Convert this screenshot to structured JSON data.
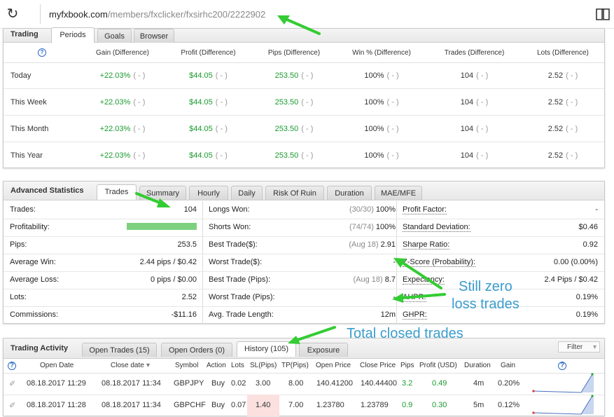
{
  "browser": {
    "url_domain": "myfxbook.com",
    "url_path": "/members/fxclicker/fxsirhc200/2222902"
  },
  "trading": {
    "title": "Trading",
    "tabs": [
      "Periods",
      "Goals",
      "Browser"
    ],
    "columns": [
      "Gain (Difference)",
      "Profit (Difference)",
      "Pips (Difference)",
      "Win % (Difference)",
      "Trades (Difference)",
      "Lots (Difference)"
    ],
    "rows": [
      {
        "period": "Today",
        "gain": "+22.03%",
        "profit": "$44.05",
        "pips": "253.50",
        "win": "100%",
        "trades": "104",
        "lots": "2.52",
        "diff": "( - )"
      },
      {
        "period": "This Week",
        "gain": "+22.03%",
        "profit": "$44.05",
        "pips": "253.50",
        "win": "100%",
        "trades": "104",
        "lots": "2.52",
        "diff": "( - )"
      },
      {
        "period": "This Month",
        "gain": "+22.03%",
        "profit": "$44.05",
        "pips": "253.50",
        "win": "100%",
        "trades": "104",
        "lots": "2.52",
        "diff": "( - )"
      },
      {
        "period": "This Year",
        "gain": "+22.03%",
        "profit": "$44.05",
        "pips": "253.50",
        "win": "100%",
        "trades": "104",
        "lots": "2.52",
        "diff": "( - )"
      }
    ]
  },
  "advanced": {
    "title": "Advanced Statistics",
    "tabs": [
      "Trades",
      "Summary",
      "Hourly",
      "Daily",
      "Risk Of Ruin",
      "Duration",
      "MAE/MFE"
    ],
    "col1": [
      {
        "label": "Trades:",
        "value": "104"
      },
      {
        "label": "Profitability:",
        "value": ""
      },
      {
        "label": "Pips:",
        "value": "253.5"
      },
      {
        "label": "Average Win:",
        "value": "2.44 pips / $0.42"
      },
      {
        "label": "Average Loss:",
        "value": "0 pips / $0.00"
      },
      {
        "label": "Lots:",
        "value": "2.52"
      },
      {
        "label": "Commissions:",
        "value": "-$11.16"
      }
    ],
    "profitability_win_fraction": 1.0,
    "col2": [
      {
        "label": "Longs Won:",
        "sub": "(30/30)",
        "value": "100%"
      },
      {
        "label": "Shorts Won:",
        "sub": "(74/74)",
        "value": "100%"
      },
      {
        "label": "Best Trade($):",
        "sub": "(Aug 18)",
        "value": "2.91"
      },
      {
        "label": "Worst Trade($):",
        "sub": "",
        "value": "-"
      },
      {
        "label": "Best Trade (Pips):",
        "sub": "(Aug 18)",
        "value": "8.7"
      },
      {
        "label": "Worst Trade (Pips):",
        "sub": "",
        "value": "-"
      },
      {
        "label": "Avg. Trade Length:",
        "sub": "",
        "value": "12m"
      }
    ],
    "col3": [
      {
        "label": "Profit Factor:",
        "value": "-"
      },
      {
        "label": "Standard Deviation:",
        "value": "$0.46"
      },
      {
        "label": "Sharpe Ratio:",
        "value": "0.92"
      },
      {
        "label": "Z-Score (Probability):",
        "value": "0.00 (0.00%)"
      },
      {
        "label": "Expectancy:",
        "value": "2.4 Pips / $0.42"
      },
      {
        "label": "AHPR:",
        "value": "0.19%"
      },
      {
        "label": "GHPR:",
        "value": "0.19%"
      }
    ]
  },
  "activity": {
    "title": "Trading Activity",
    "tabs": [
      "Open Trades (15)",
      "Open Orders (0)",
      "History (105)",
      "Exposure"
    ],
    "filter_label": "Filter",
    "columns": [
      "Open Date",
      "Close date",
      "Symbol",
      "Action",
      "Lots",
      "SL(Pips)",
      "TP(Pips)",
      "Open Price",
      "Close Price",
      "Pips",
      "Profit (USD)",
      "Duration",
      "Gain"
    ],
    "rows": [
      {
        "open": "08.18.2017 11:29",
        "close": "08.18.2017 11:34",
        "symbol": "GBPJPY",
        "action": "Buy",
        "lots": "0.02",
        "sl": "3.00",
        "tp": "8.00",
        "open_price": "140.41200",
        "close_price": "140.44400",
        "pips": "3.2",
        "profit": "0.49",
        "duration": "4m",
        "gain": "0.20%"
      },
      {
        "open": "08.18.2017 11:28",
        "close": "08.18.2017 11:34",
        "symbol": "GBPCHF",
        "action": "Buy",
        "lots": "0.07",
        "sl": "1.40",
        "tp": "7.00",
        "open_price": "1.23780",
        "close_price": "1.23789",
        "pips": "0.9",
        "profit": "0.30",
        "duration": "5m",
        "gain": "0.12%"
      }
    ]
  },
  "annotations": {
    "still_zero_1": "Still zero",
    "still_zero_2": "loss trades",
    "total_closed": "Total closed trades"
  },
  "colors": {
    "positive": "#1a9a2e",
    "annotation_arrow": "#33cc33",
    "annotation_text": "#3a9ccf"
  }
}
